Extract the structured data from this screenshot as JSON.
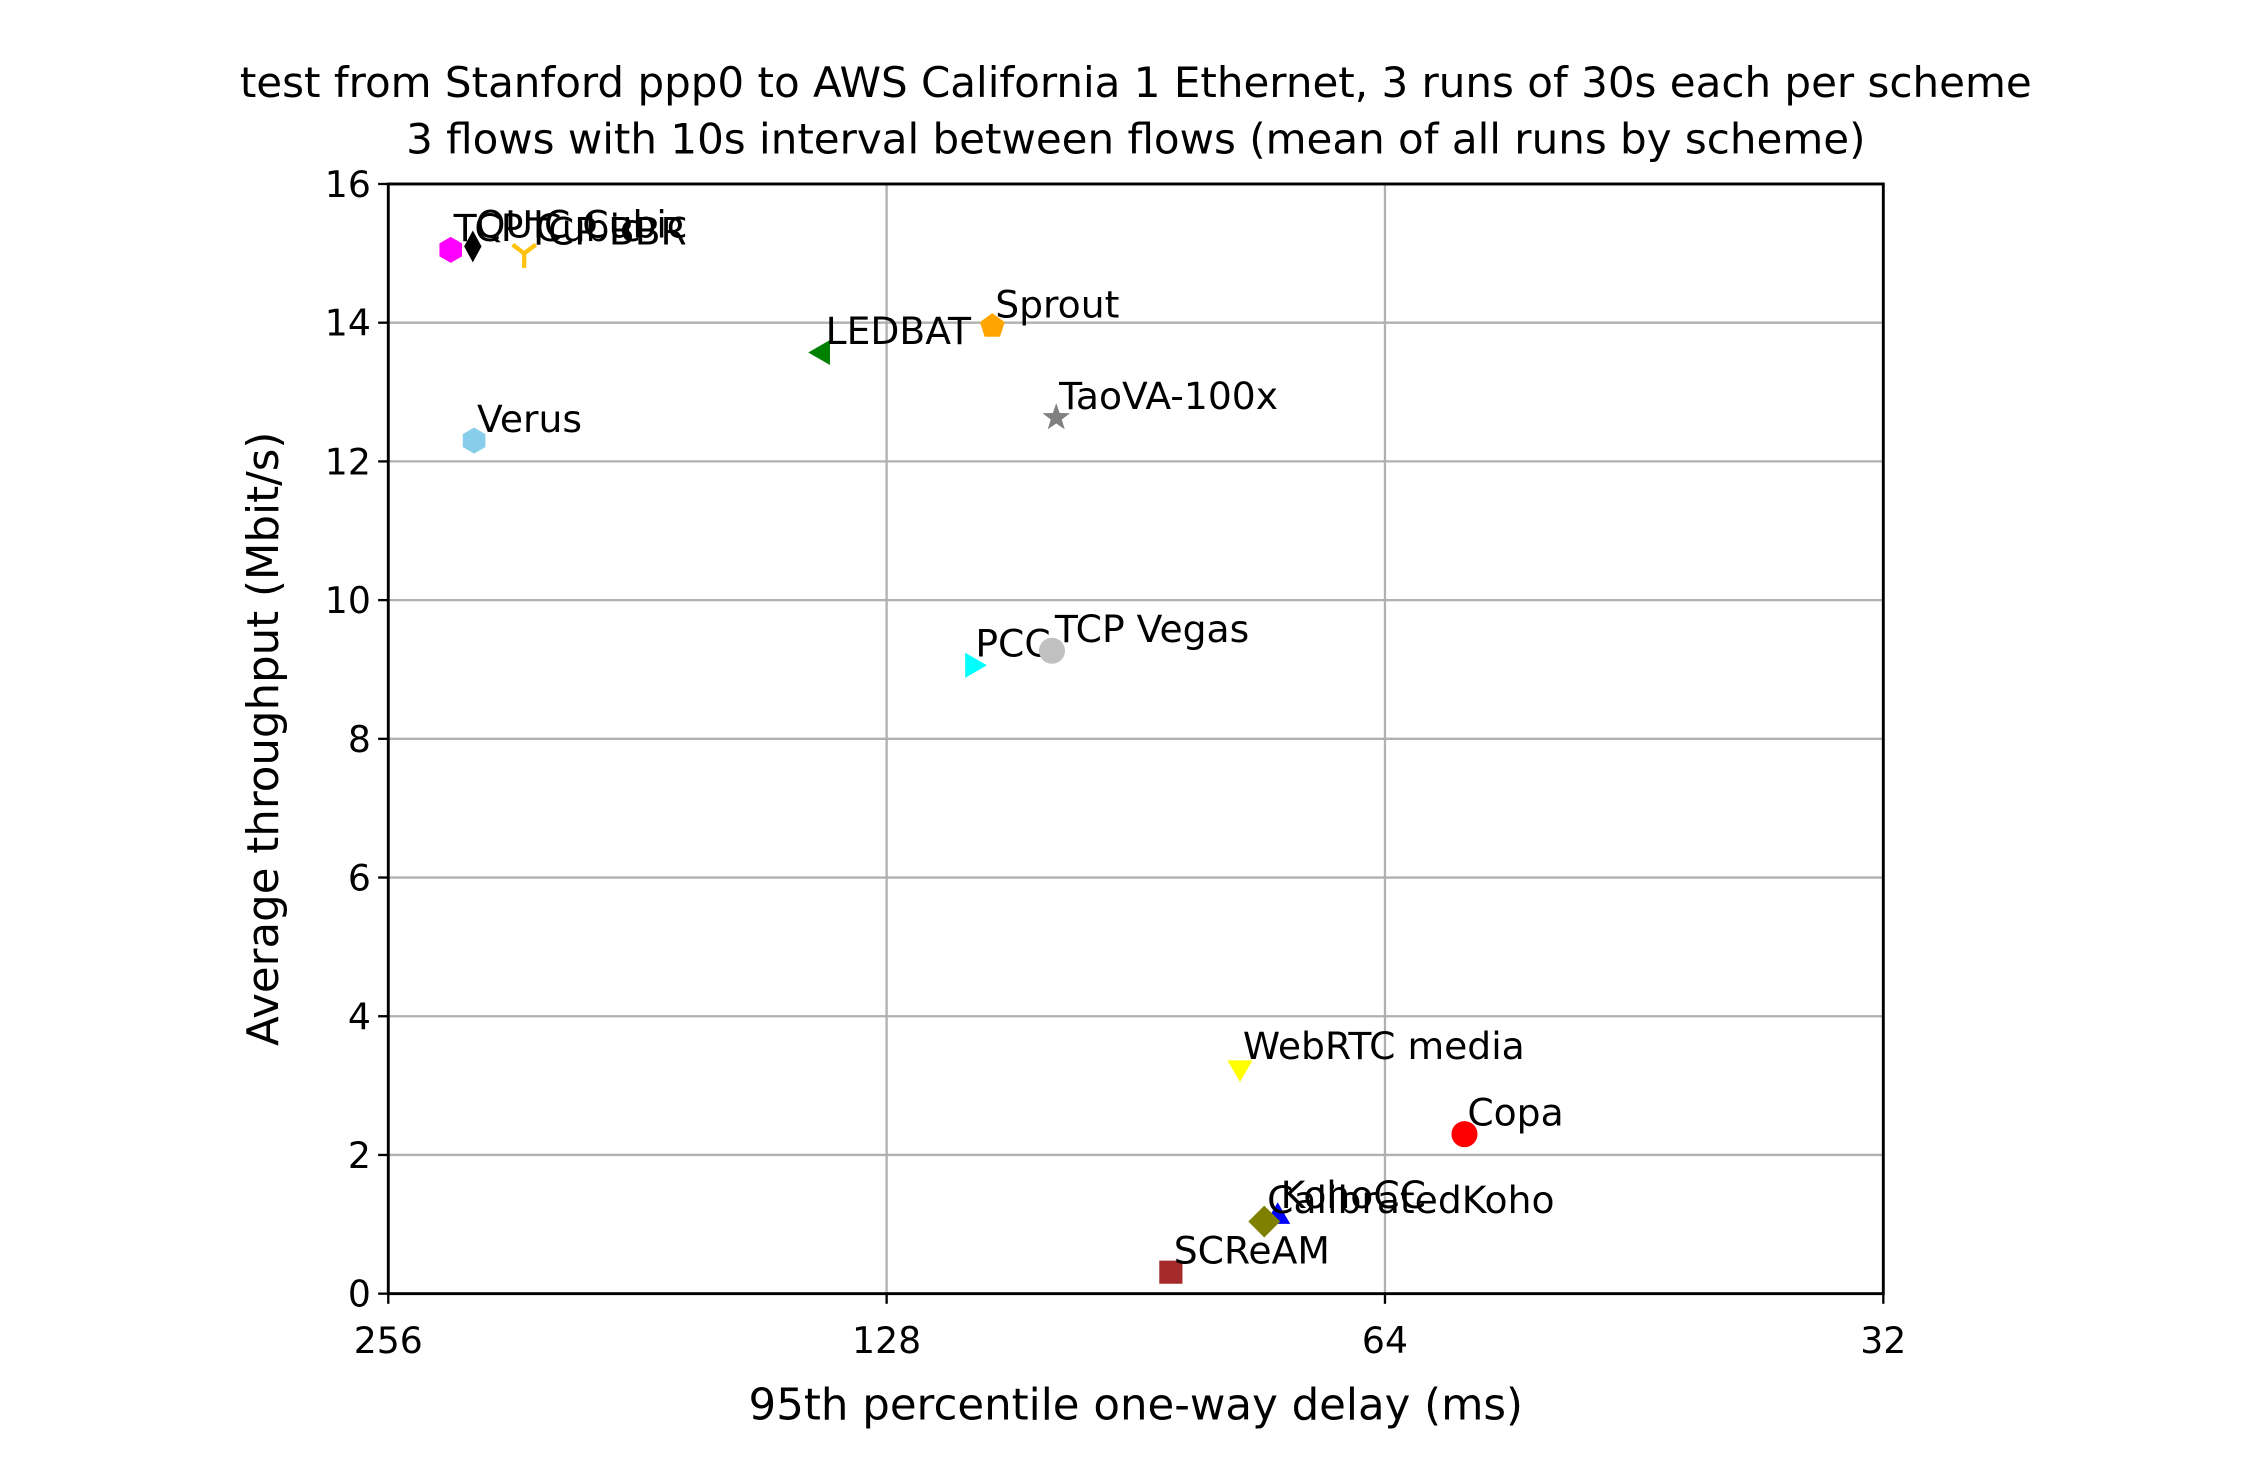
{
  "chart_data": {
    "type": "scatter",
    "title": "test from Stanford ppp0 to AWS California 1 Ethernet, 3 runs of 30s each per scheme",
    "subtitle": "3 flows with 10s interval between flows (mean of all runs by scheme)",
    "xlabel": "95th percentile one-way delay (ms)",
    "ylabel": "Average throughput (Mbit/s)",
    "xscale": "log2",
    "xlim": [
      256,
      32
    ],
    "xticks": [
      256,
      128,
      64,
      32
    ],
    "ylim": [
      0,
      16
    ],
    "yticks": [
      0,
      2,
      4,
      6,
      8,
      10,
      12,
      14,
      16
    ],
    "grid": true,
    "series": [
      {
        "name": "TCP Cubic",
        "color": "#ff00ff",
        "marker": "hexagon",
        "x": [
          234.7
        ],
        "values": [
          15.05
        ]
      },
      {
        "name": "QUIC Cubic",
        "color": "#000000",
        "marker": "thin-diamond",
        "x": [
          227.6
        ],
        "values": [
          15.1
        ]
      },
      {
        "name": "TCP BBR",
        "color": "#ffc20e",
        "marker": "tri-down",
        "x": [
          211.9
        ],
        "values": [
          15.0
        ]
      },
      {
        "name": "LEDBAT",
        "color": "#008000",
        "marker": "triangle-left",
        "x": [
          139.9
        ],
        "values": [
          13.57
        ]
      },
      {
        "name": "Sprout",
        "color": "#ffa500",
        "marker": "pentagon",
        "x": [
          110.5
        ],
        "values": [
          13.95
        ]
      },
      {
        "name": "TaoVA-100x",
        "color": "#808080",
        "marker": "star",
        "x": [
          101.1
        ],
        "values": [
          12.63
        ]
      },
      {
        "name": "Verus",
        "color": "#87ceeb",
        "marker": "hexagon",
        "x": [
          227.2
        ],
        "values": [
          12.3
        ]
      },
      {
        "name": "PCC",
        "color": "#00ffff",
        "marker": "triangle-right",
        "x": [
          113.6
        ],
        "values": [
          9.06
        ]
      },
      {
        "name": "TCP Vegas",
        "color": "#c0c0c0",
        "marker": "circle",
        "x": [
          101.7
        ],
        "values": [
          9.27
        ]
      },
      {
        "name": "WebRTC media",
        "color": "#ffff00",
        "marker": "triangle-down",
        "x": [
          78.3
        ],
        "values": [
          3.26
        ]
      },
      {
        "name": "Copa",
        "color": "#ff0000",
        "marker": "circle",
        "x": [
          57.3
        ],
        "values": [
          2.3
        ]
      },
      {
        "name": "KohoCC",
        "color": "#0000ff",
        "marker": "triangle-up",
        "x": [
          74.3
        ],
        "values": [
          1.11
        ]
      },
      {
        "name": "CalibratedKoho",
        "color": "#808000",
        "marker": "diamond",
        "x": [
          75.7
        ],
        "values": [
          1.04
        ]
      },
      {
        "name": "SCReAM",
        "color": "#a52a2a",
        "marker": "square",
        "x": [
          86.2
        ],
        "values": [
          0.31
        ]
      }
    ]
  }
}
